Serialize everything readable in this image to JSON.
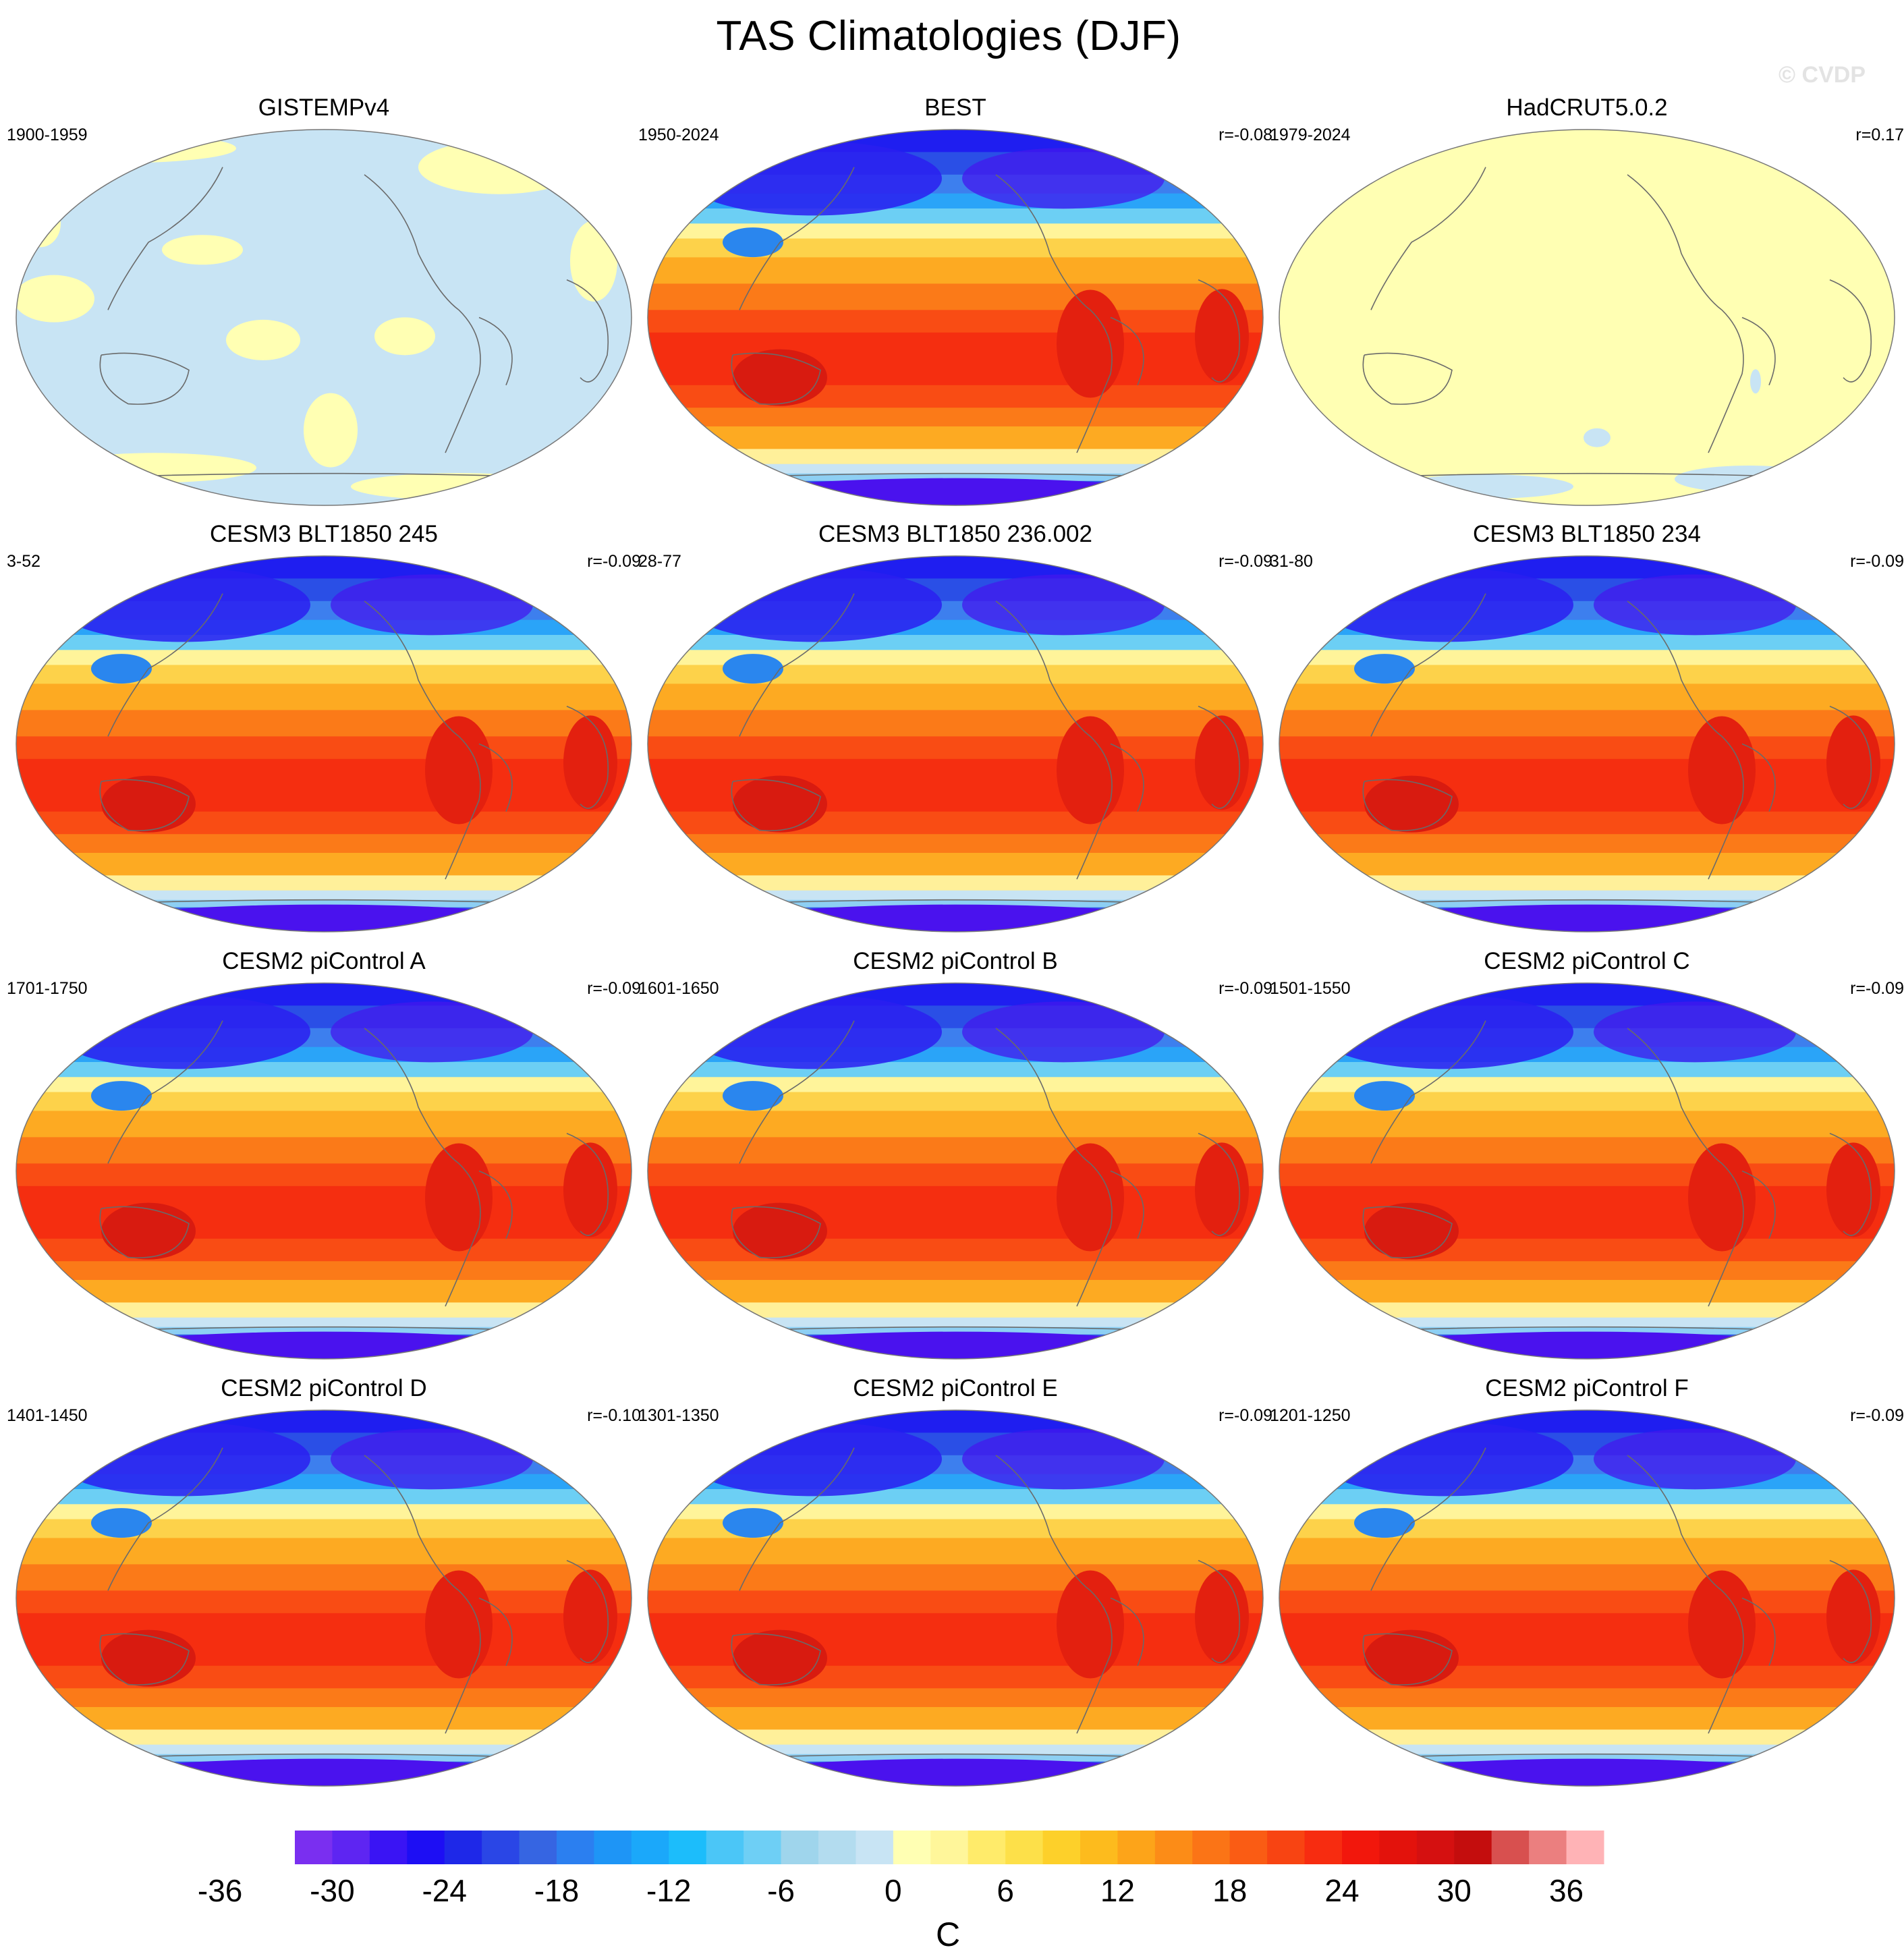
{
  "title": "TAS Climatologies (DJF)",
  "watermark": "© CVDP",
  "panels": [
    {
      "name": "GISTEMPv4",
      "years": "1900-1959",
      "r": "",
      "style": "gistemp"
    },
    {
      "name": "BEST",
      "years": "1950-2024",
      "r": "r=-0.08",
      "style": "full"
    },
    {
      "name": "HadCRUT5.0.2",
      "years": "1979-2024",
      "r": "r=0.17",
      "style": "hadcrut"
    },
    {
      "name": "CESM3 BLT1850 245",
      "years": "3-52",
      "r": "r=-0.09",
      "style": "full"
    },
    {
      "name": "CESM3 BLT1850 236.002",
      "years": "28-77",
      "r": "r=-0.09",
      "style": "full"
    },
    {
      "name": "CESM3 BLT1850 234",
      "years": "31-80",
      "r": "r=-0.09",
      "style": "full"
    },
    {
      "name": "CESM2 piControl A",
      "years": "1701-1750",
      "r": "r=-0.09",
      "style": "full"
    },
    {
      "name": "CESM2 piControl B",
      "years": "1601-1650",
      "r": "r=-0.09",
      "style": "full"
    },
    {
      "name": "CESM2 piControl C",
      "years": "1501-1550",
      "r": "r=-0.09",
      "style": "full"
    },
    {
      "name": "CESM2 piControl D",
      "years": "1401-1450",
      "r": "r=-0.10",
      "style": "full"
    },
    {
      "name": "CESM2 piControl E",
      "years": "1301-1350",
      "r": "r=-0.09",
      "style": "full"
    },
    {
      "name": "CESM2 piControl F",
      "years": "1201-1250",
      "r": "r=-0.09",
      "style": "full"
    }
  ],
  "colorbar": {
    "units": "C",
    "tick_labels": [
      "-36",
      "-30",
      "-24",
      "-18",
      "-12",
      "-6",
      "0",
      "6",
      "12",
      "18",
      "24",
      "30",
      "36"
    ],
    "colors": [
      "#7a2ff0",
      "#5e25f2",
      "#3a14f4",
      "#1d0ef4",
      "#1e28e8",
      "#2a46e6",
      "#3665e2",
      "#2b7ff0",
      "#1e95f6",
      "#1ba8fa",
      "#1cbdfb",
      "#4bc6f7",
      "#6ecff5",
      "#9fd5ec",
      "#b3dcef",
      "#c8e4f4",
      "#ffffb3",
      "#fff69a",
      "#ffeb6a",
      "#fde049",
      "#fdd02a",
      "#fdbb1d",
      "#fda419",
      "#fc8c17",
      "#fb7416",
      "#fa5c14",
      "#f84412",
      "#f72c10",
      "#f2170c",
      "#e3120c",
      "#d51010",
      "#c40d0d",
      "#d8504f",
      "#eb7f7f",
      "#ffb3b6"
    ]
  }
}
